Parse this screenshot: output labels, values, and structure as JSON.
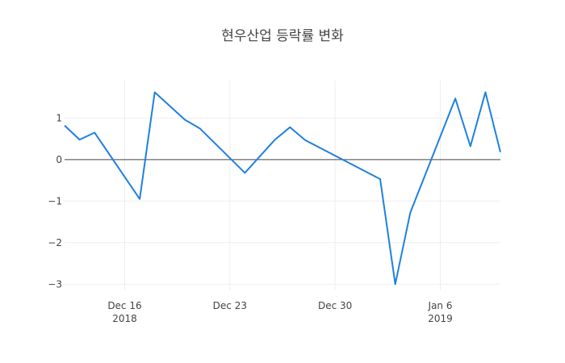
{
  "chart_data": {
    "type": "line",
    "title": "현우산업 등락률 변화",
    "xlabel": "",
    "ylabel": "",
    "x_tick_labels": [
      {
        "date": "2018-12-16",
        "label": "Dec 16",
        "sublabel": "2018"
      },
      {
        "date": "2018-12-23",
        "label": "Dec 23",
        "sublabel": ""
      },
      {
        "date": "2018-12-30",
        "label": "Dec 30",
        "sublabel": ""
      },
      {
        "date": "2019-01-06",
        "label": "Jan 6",
        "sublabel": "2019"
      }
    ],
    "y_ticks": [
      1,
      0,
      -1,
      -2,
      -3
    ],
    "y_tick_labels": [
      "1",
      "0",
      "−1",
      "−2",
      "−3"
    ],
    "xlim": [
      "2018-12-12",
      "2019-01-10"
    ],
    "ylim": [
      -3.15,
      1.9
    ],
    "grid": true,
    "zero_line": true,
    "series": [
      {
        "color": "#1f80e0",
        "x": [
          "2018-12-12",
          "2018-12-13",
          "2018-12-14",
          "2018-12-17",
          "2018-12-18",
          "2018-12-20",
          "2018-12-21",
          "2018-12-24",
          "2018-12-26",
          "2018-12-27",
          "2018-12-28",
          "2019-01-02",
          "2019-01-03",
          "2019-01-04",
          "2019-01-07",
          "2019-01-08",
          "2019-01-09",
          "2019-01-10"
        ],
        "values": [
          0.82,
          0.48,
          0.65,
          -0.95,
          1.62,
          0.96,
          0.75,
          -0.32,
          0.48,
          0.78,
          0.47,
          -0.47,
          -3.0,
          -1.28,
          1.47,
          0.32,
          1.62,
          0.18
        ]
      }
    ]
  }
}
